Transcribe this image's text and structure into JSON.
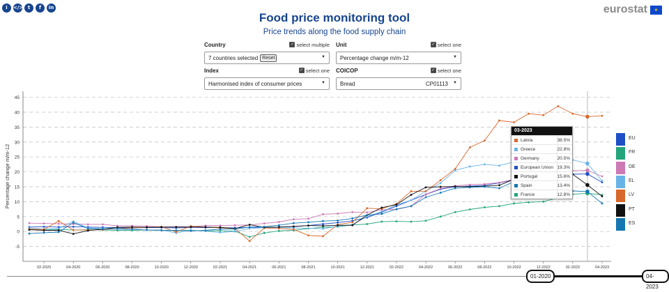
{
  "header": {
    "title": "Food price monitoring tool",
    "subtitle": "Price trends along the food supply chain",
    "logo_text": "eurostat",
    "share_buttons": [
      {
        "icon": "info-icon",
        "glyph": "i"
      },
      {
        "icon": "embed-code-icon",
        "glyph": "</>"
      },
      {
        "icon": "twitter-icon",
        "glyph": "t"
      },
      {
        "icon": "facebook-icon",
        "glyph": "f"
      },
      {
        "icon": "linkedin-icon",
        "glyph": "in"
      }
    ]
  },
  "controls": {
    "country": {
      "label": "Country",
      "option": "select multiple",
      "value": "7 countries selected",
      "reset": "Reset"
    },
    "unit": {
      "label": "Unit",
      "option": "select one",
      "value": "Percentage change m/m-12"
    },
    "index": {
      "label": "Index",
      "option": "select one",
      "value": "Harmonised index of consumer prices"
    },
    "coicop": {
      "label": "COICOP",
      "option": "select one",
      "value": "Bread",
      "code": "CP01113"
    }
  },
  "tooltip": {
    "date": "03-2023",
    "rows": [
      {
        "name": "Latvia",
        "value": "38.5%",
        "color": "#d9682b"
      },
      {
        "name": "Greece",
        "value": "22.8%",
        "color": "#69b3e7"
      },
      {
        "name": "Germany",
        "value": "20.5%",
        "color": "#cc79b4"
      },
      {
        "name": "European Union",
        "value": "19.3%",
        "color": "#1f4fc7"
      },
      {
        "name": "Portugal",
        "value": "15.6%",
        "color": "#111111"
      },
      {
        "name": "Spain",
        "value": "13.4%",
        "color": "#1576b2"
      },
      {
        "name": "France",
        "value": "12.8%",
        "color": "#23a57c"
      }
    ]
  },
  "slider": {
    "start": "01-2020",
    "end": "04-2023"
  },
  "chart_data": {
    "type": "line",
    "title": "",
    "xlabel": "",
    "ylabel": "Percentage change m/m-12",
    "ylim": [
      -10,
      47
    ],
    "yticks": [
      -5,
      0,
      5,
      10,
      15,
      20,
      25,
      30,
      35,
      40,
      45
    ],
    "x": [
      "01-2020",
      "02-2020",
      "03-2020",
      "04-2020",
      "05-2020",
      "06-2020",
      "07-2020",
      "08-2020",
      "09-2020",
      "10-2020",
      "11-2020",
      "12-2020",
      "01-2021",
      "02-2021",
      "03-2021",
      "04-2021",
      "05-2021",
      "06-2021",
      "07-2021",
      "08-2021",
      "09-2021",
      "10-2021",
      "11-2021",
      "12-2021",
      "01-2022",
      "02-2022",
      "03-2022",
      "04-2022",
      "05-2022",
      "06-2022",
      "07-2022",
      "08-2022",
      "09-2022",
      "10-2022",
      "11-2022",
      "12-2022",
      "01-2023",
      "02-2023",
      "03-2023",
      "04-2023"
    ],
    "xtick_labels": [
      "02-2020",
      "04-2020",
      "06-2020",
      "08-2020",
      "10-2020",
      "12-2020",
      "02-2021",
      "04-2021",
      "06-2021",
      "08-2021",
      "10-2021",
      "12-2021",
      "02-2022",
      "04-2022",
      "06-2022",
      "08-2022",
      "10-2022",
      "12-2022",
      "02-2023",
      "04-2023"
    ],
    "highlight_x": "03-2023",
    "series": [
      {
        "name": "EU",
        "color": "#1f4fc7",
        "values": [
          1.5,
          1.6,
          1.5,
          1.6,
          1.5,
          1.4,
          1.3,
          1.2,
          1.3,
          1.3,
          1.2,
          1.4,
          1.3,
          1.3,
          1.2,
          1.4,
          1.3,
          1.5,
          1.6,
          2.0,
          2.5,
          3.0,
          3.6,
          4.7,
          6.5,
          8.5,
          10.5,
          12.4,
          14.2,
          15.0,
          15.2,
          15.5,
          16.3,
          17.3,
          17.5,
          18.0,
          18.7,
          19.2,
          19.3,
          16.5
        ]
      },
      {
        "name": "FR",
        "color": "#23a57c",
        "values": [
          0.6,
          0.7,
          0.7,
          0.5,
          0.6,
          0.5,
          0.4,
          0.4,
          0.5,
          0.4,
          0.3,
          0.4,
          0.2,
          0.3,
          0.1,
          -1.8,
          -0.5,
          0.2,
          0.4,
          1.0,
          1.4,
          1.6,
          2.2,
          2.5,
          3.3,
          3.4,
          3.3,
          3.6,
          5.0,
          6.5,
          7.4,
          8.1,
          8.5,
          9.4,
          9.8,
          10.0,
          11.3,
          12.5,
          12.8,
          12.3
        ]
      },
      {
        "name": "DE",
        "color": "#cc79b4",
        "values": [
          2.8,
          2.7,
          2.6,
          2.5,
          2.4,
          2.4,
          1.9,
          1.9,
          1.8,
          1.5,
          1.6,
          1.6,
          2.0,
          2.0,
          2.1,
          2.2,
          2.7,
          3.2,
          4.1,
          4.3,
          5.8,
          6.0,
          6.5,
          6.4,
          7.3,
          7.4,
          8.5,
          12.5,
          14.4,
          15.3,
          15.7,
          15.9,
          16.4,
          17.5,
          18.0,
          18.6,
          19.5,
          20.4,
          20.5,
          18.5
        ]
      },
      {
        "name": "EL",
        "color": "#69b3e7",
        "values": [
          1.2,
          0.8,
          1.0,
          3.4,
          1.2,
          1.0,
          0.8,
          0.7,
          0.5,
          0.5,
          -0.5,
          0.5,
          0.1,
          -0.3,
          0.0,
          1.0,
          1.3,
          1.3,
          1.2,
          1.1,
          0.9,
          1.8,
          2.3,
          5.0,
          6.7,
          8.9,
          10.5,
          13.5,
          16.2,
          20.5,
          21.8,
          22.5,
          22.1,
          23.3,
          24.0,
          24.5,
          25.0,
          24.0,
          22.8,
          17.0
        ]
      },
      {
        "name": "LV",
        "color": "#d9682b",
        "values": [
          0.8,
          0.7,
          3.5,
          0.5,
          0.5,
          0.6,
          1.0,
          1.2,
          1.4,
          1.6,
          -0.2,
          1.8,
          1.5,
          1.2,
          1.0,
          -3.2,
          1.2,
          1.0,
          0.7,
          -1.3,
          -1.6,
          2.3,
          3.1,
          7.8,
          7.6,
          9.3,
          13.5,
          13.5,
          17.2,
          21.0,
          28.2,
          30.5,
          37.2,
          36.6,
          39.5,
          39.0,
          42.0,
          39.5,
          38.5,
          38.8
        ]
      },
      {
        "name": "PT",
        "color": "#111111",
        "values": [
          0.6,
          0.4,
          0.4,
          -0.8,
          0.3,
          0.8,
          1.4,
          1.5,
          1.4,
          1.5,
          1.5,
          1.5,
          1.5,
          1.4,
          1.0,
          2.3,
          1.4,
          1.5,
          1.7,
          2.0,
          1.9,
          2.1,
          2.1,
          5.5,
          8.0,
          9.0,
          12.3,
          14.8,
          15.0,
          15.1,
          15.0,
          15.2,
          15.5,
          17.5,
          17.8,
          18.3,
          19.7,
          19.2,
          15.6,
          11.8
        ]
      },
      {
        "name": "ES",
        "color": "#1576b2",
        "values": [
          -0.7,
          -0.4,
          -0.2,
          3.0,
          1.0,
          0.8,
          1.0,
          0.8,
          0.5,
          0.4,
          0.4,
          0.2,
          0.4,
          0.8,
          0.8,
          1.5,
          1.6,
          2.1,
          2.8,
          3.1,
          3.5,
          3.7,
          4.4,
          5.5,
          5.9,
          7.5,
          8.5,
          11.5,
          13.0,
          14.5,
          14.8,
          15.0,
          14.5,
          16.7,
          17.5,
          18.0,
          16.0,
          13.6,
          13.4,
          9.4
        ]
      }
    ]
  },
  "legend": [
    "EU",
    "FR",
    "DE",
    "EL",
    "LV",
    "PT",
    "ES"
  ]
}
